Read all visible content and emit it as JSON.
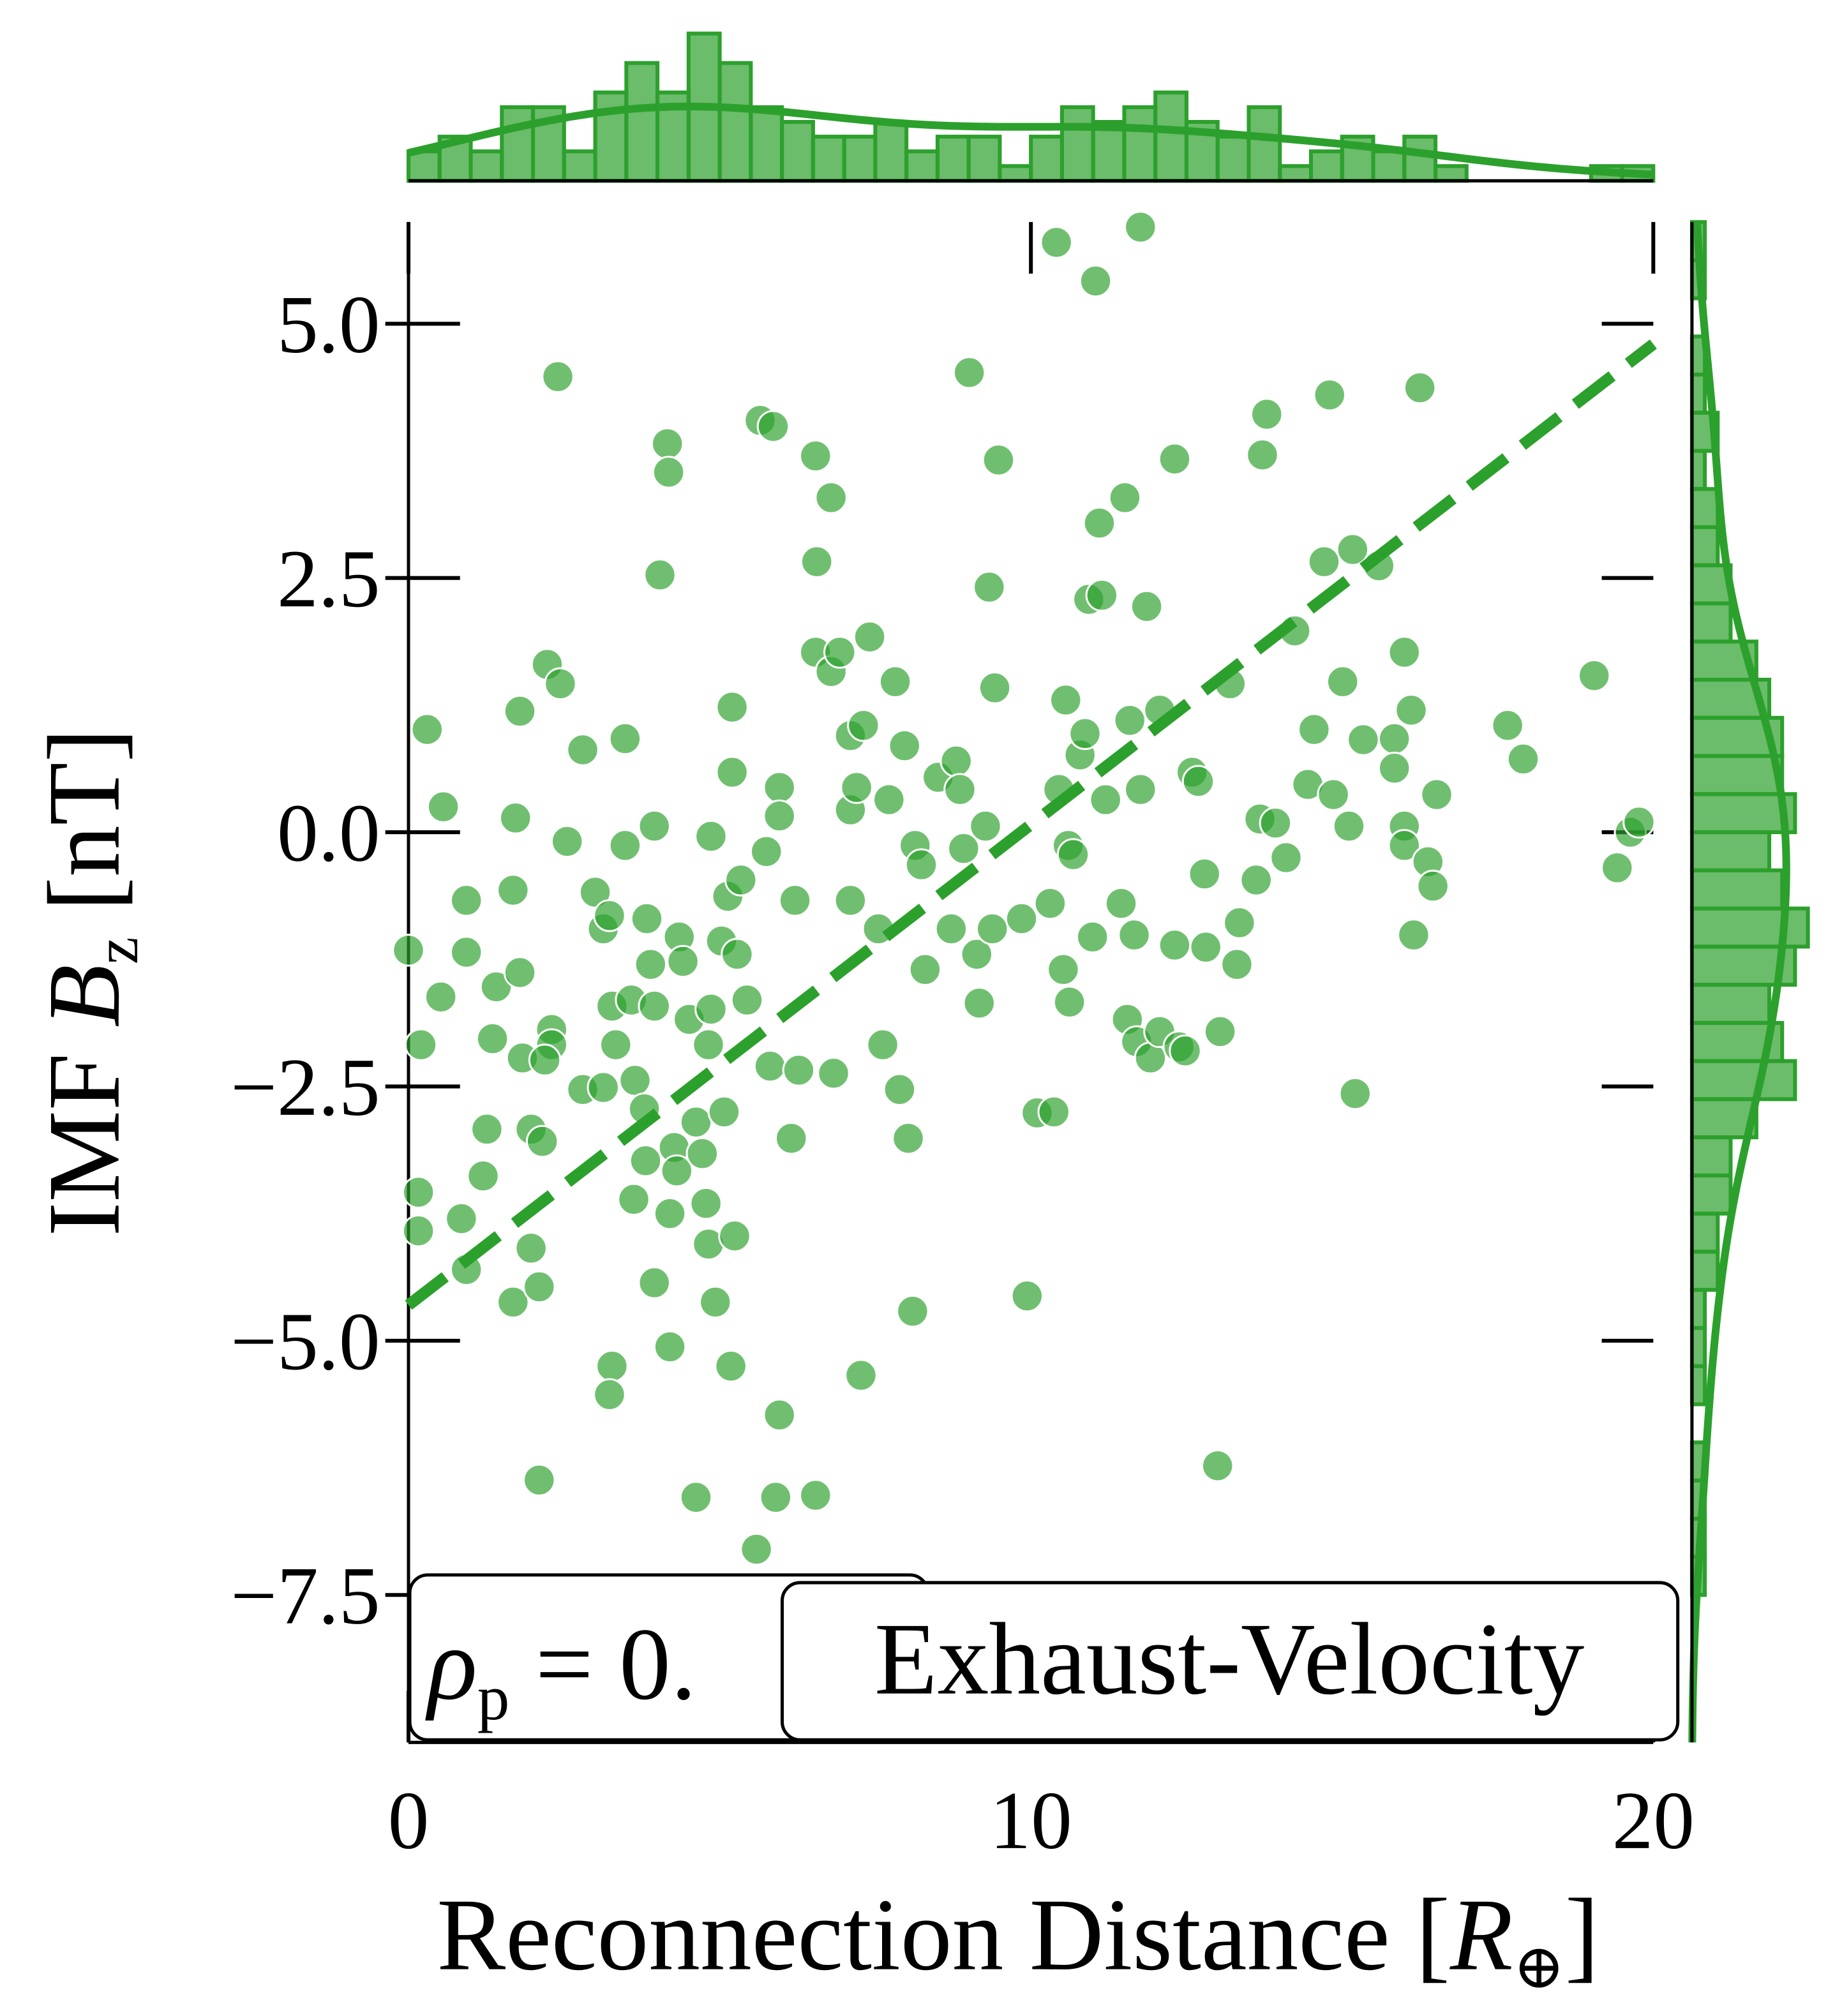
{
  "chart_data": [
    {
      "type": "scatter",
      "color": "#2ca02c",
      "xlabel": {
        "text": "Reconnection Distance [",
        "var": "R",
        "sub": "⊕",
        "close": "]"
      },
      "ylabel": {
        "text": "IMF ",
        "var": "B",
        "sub": "z",
        "close": " [nT]"
      },
      "xlim": [
        0,
        20
      ],
      "ylim": [
        -8.95,
        6.0
      ],
      "xticks": [
        0,
        10,
        20
      ],
      "yticks": [
        {
          "value": -7.5,
          "label": "−7.5"
        },
        {
          "value": -5,
          "label": "−5.0"
        },
        {
          "value": -2.5,
          "label": "−2.5"
        },
        {
          "value": 0,
          "label": "0.0"
        },
        2.5,
        {
          "value": 5,
          "label": "5.0"
        }
      ],
      "x": [
        0.0,
        0.3,
        0.56,
        0.2,
        0.52,
        0.16,
        0.16,
        0.93,
        0.93,
        0.85,
        0.93,
        1.26,
        1.2,
        1.35,
        1.41,
        1.68,
        1.72,
        1.79,
        1.79,
        1.83,
        1.68,
        1.97,
        1.97,
        2.1,
        2.1,
        2.15,
        2.23,
        2.3,
        2.3,
        2.19,
        2.44,
        2.4,
        2.55,
        2.8,
        2.8,
        3.0,
        3.13,
        3.13,
        3.33,
        3.27,
        3.23,
        3.27,
        3.23,
        3.48,
        3.48,
        3.58,
        3.64,
        3.62,
        3.79,
        3.81,
        3.83,
        3.89,
        3.95,
        3.95,
        3.95,
        4.04,
        4.16,
        4.18,
        4.2,
        4.2,
        4.27,
        4.31,
        4.35,
        4.41,
        4.51,
        4.62,
        4.72,
        4.62,
        4.78,
        4.82,
        4.82,
        4.86,
        4.86,
        4.93,
        5.03,
        5.07,
        5.13,
        5.2,
        5.2,
        5.18,
        5.24,
        5.28,
        5.34,
        5.44,
        5.59,
        5.65,
        5.75,
        5.81,
        5.86,
        5.9,
        5.96,
        5.96,
        5.96,
        6.15,
        6.21,
        6.27,
        6.54,
        6.54,
        6.56,
        6.54,
        6.79,
        6.79,
        6.83,
        6.93,
        7.1,
        7.1,
        7.1,
        7.2,
        7.27,
        7.31,
        7.41,
        7.55,
        7.62,
        7.72,
        7.82,
        7.89,
        7.97,
        8.03,
        8.1,
        8.14,
        8.24,
        8.3,
        8.51,
        8.72,
        8.8,
        8.86,
        8.92,
        9.01,
        9.13,
        9.17,
        9.27,
        9.33,
        9.38,
        9.42,
        9.48,
        9.85,
        9.94,
        10.1,
        10.31,
        10.37,
        10.41,
        10.45,
        10.52,
        10.56,
        10.6,
        10.62,
        10.68,
        10.79,
        10.87,
        10.93,
        10.99,
        11.04,
        11.1,
        11.14,
        11.2,
        11.45,
        11.51,
        11.55,
        11.59,
        11.66,
        11.7,
        11.76,
        11.76,
        11.86,
        11.92,
        12.07,
        12.07,
        12.31,
        12.38,
        12.31,
        12.48,
        12.59,
        12.69,
        12.79,
        12.81,
        13.0,
        13.04,
        13.2,
        13.31,
        13.35,
        13.62,
        13.68,
        13.72,
        13.79,
        13.93,
        14.1,
        14.24,
        14.45,
        14.55,
        14.71,
        14.8,
        14.86,
        15.01,
        15.11,
        15.17,
        15.21,
        15.34,
        15.59,
        15.84,
        15.84,
        16.0,
        16.0,
        16.0,
        16.11,
        16.15,
        16.25,
        16.38,
        16.46,
        16.52,
        17.66,
        17.91,
        19.05,
        19.42,
        19.63,
        19.77
      ],
      "y": [
        -1.16,
        1.01,
        0.25,
        -2.09,
        -1.62,
        -3.54,
        -3.92,
        -0.67,
        -1.18,
        -3.8,
        -4.3,
        -2.92,
        -3.38,
        -2.03,
        -1.52,
        -0.57,
        0.14,
        1.19,
        -1.38,
        -2.22,
        -4.62,
        -2.92,
        -4.09,
        -4.47,
        -6.37,
        -3.04,
        1.65,
        -1.94,
        -2.09,
        -2.24,
        1.46,
        4.48,
        -0.09,
        0.81,
        -2.53,
        -0.59,
        -0.95,
        -2.51,
        -2.09,
        -1.71,
        -0.82,
        -5.25,
        -5.53,
        0.92,
        -0.13,
        -1.65,
        -2.44,
        -3.61,
        -2.72,
        -3.23,
        -0.85,
        -1.3,
        -1.71,
        0.06,
        -4.43,
        2.53,
        3.82,
        3.54,
        -3.75,
        -5.06,
        -3.1,
        -3.33,
        -1.03,
        -1.27,
        -1.84,
        -2.85,
        -3.16,
        -6.54,
        -3.65,
        -4.05,
        -2.09,
        -0.04,
        -1.74,
        -4.62,
        -1.07,
        -2.75,
        -0.63,
        0.59,
        1.23,
        -5.25,
        -3.97,
        -1.2,
        -0.47,
        -1.65,
        -7.05,
        4.05,
        -0.19,
        -2.3,
        3.99,
        -6.54,
        0.44,
        0.16,
        -5.73,
        -3.01,
        -0.67,
        -2.34,
        -6.52,
        3.7,
        2.66,
        1.77,
        1.58,
        3.29,
        -2.37,
        1.77,
        -0.67,
        0.22,
        0.95,
        0.44,
        -5.34,
        1.05,
        1.92,
        -0.95,
        -2.09,
        0.32,
        1.48,
        -2.53,
        0.85,
        -3.01,
        -4.71,
        -0.13,
        -0.32,
        -1.35,
        0.54,
        -0.95,
        0.7,
        0.42,
        -0.16,
        4.52,
        -1.2,
        -1.68,
        0.06,
        2.41,
        -0.95,
        1.42,
        3.66,
        -0.85,
        -4.56,
        -2.76,
        -0.7,
        -2.75,
        5.8,
        0.42,
        -1.35,
        1.3,
        -0.13,
        -1.67,
        -0.22,
        0.76,
        0.97,
        2.29,
        -1.03,
        5.42,
        3.04,
        2.33,
        0.32,
        -0.7,
        3.29,
        -1.84,
        1.1,
        -1.01,
        -2.06,
        5.95,
        0.42,
        2.22,
        -2.22,
        1.2,
        -1.96,
        3.67,
        -2.11,
        -1.11,
        -2.15,
        0.59,
        0.5,
        -0.41,
        -1.13,
        -6.23,
        -1.96,
        1.46,
        -1.3,
        -0.89,
        -0.47,
        0.13,
        3.71,
        4.11,
        0.09,
        -0.25,
        1.98,
        0.47,
        1.01,
        2.66,
        4.3,
        0.37,
        1.48,
        0.06,
        2.78,
        -2.57,
        0.91,
        2.62,
        0.92,
        0.63,
        0.06,
        -0.13,
        1.77,
        1.2,
        -1.01,
        4.37,
        -0.29,
        -0.53,
        0.37,
        1.05,
        0.72,
        1.54,
        -0.35,
        0.0,
        0.1
      ],
      "trend": {
        "x": [
          0,
          20
        ],
        "y": [
          -4.65,
          4.8
        ]
      },
      "annotations": [
        {
          "var": "ρ",
          "sub": "p",
          "text": " = 0."
        },
        {
          "text": "Exhaust-Velocity"
        }
      ]
    },
    {
      "type": "histogram",
      "orientation": "vertical",
      "color": "#2ca02c",
      "ylim": [
        0,
        10.5
      ],
      "bins": [
        0,
        0.5,
        1,
        1.5,
        2,
        2.5,
        3,
        3.5,
        4,
        4.5,
        5,
        5.5,
        6,
        6.5,
        7,
        7.5,
        8,
        8.5,
        9,
        9.5,
        10,
        10.5,
        11,
        11.5,
        12,
        12.5,
        13,
        13.5,
        14,
        14.5,
        15,
        15.5,
        16,
        16.5,
        17,
        17.5,
        18,
        18.5,
        19,
        19.5,
        20
      ],
      "counts": [
        2,
        3,
        2,
        5,
        5,
        2,
        6,
        8,
        6,
        10,
        8,
        5,
        4,
        3,
        3,
        4,
        2,
        3,
        3,
        1,
        3,
        5,
        4,
        5,
        6,
        4,
        3,
        5,
        1,
        2,
        3,
        2,
        3,
        1,
        0,
        0,
        0,
        0,
        1,
        1
      ]
    },
    {
      "type": "histogram",
      "orientation": "horizontal",
      "color": "#2ca02c",
      "xlim": [
        0,
        9.5
      ],
      "bins": [
        -9,
        -8.625,
        -8.25,
        -7.875,
        -7.5,
        -7.125,
        -6.75,
        -6.375,
        -6,
        -5.625,
        -5.25,
        -4.875,
        -4.5,
        -4.125,
        -3.75,
        -3.375,
        -3,
        -2.625,
        -2.25,
        -1.875,
        -1.5,
        -1.125,
        -0.75,
        -0.375,
        0,
        0.375,
        0.75,
        1.125,
        1.5,
        1.875,
        2.25,
        2.625,
        3,
        3.375,
        3.75,
        4.125,
        4.5,
        4.875,
        5.25,
        5.625,
        6
      ],
      "counts": [
        0,
        0,
        0,
        0,
        1,
        1,
        1,
        1,
        0,
        1,
        1,
        1,
        2,
        2,
        3,
        3,
        5,
        8,
        7,
        6,
        8,
        9,
        7,
        6,
        8,
        7,
        7,
        6,
        5,
        3,
        3,
        2,
        2,
        1,
        2,
        1,
        1,
        0,
        1,
        1
      ]
    }
  ]
}
